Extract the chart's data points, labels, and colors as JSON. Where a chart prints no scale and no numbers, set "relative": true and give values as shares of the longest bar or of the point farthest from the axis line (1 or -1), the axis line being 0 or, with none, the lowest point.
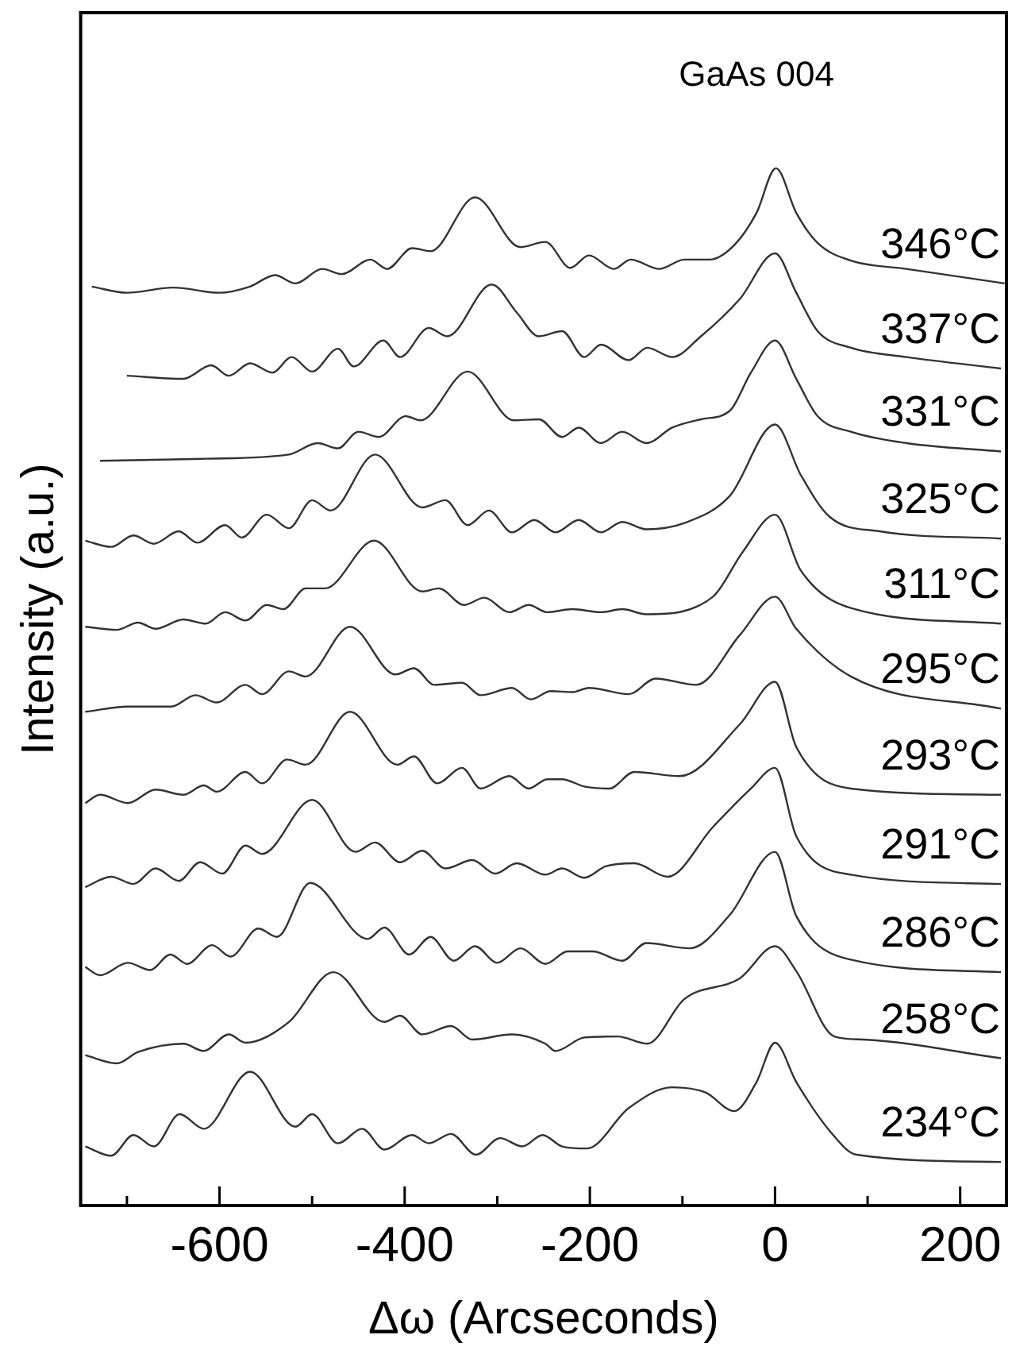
{
  "chart_data": {
    "type": "line",
    "xlabel": "Δω (Arcseconds)",
    "ylabel": "Intensity (a.u.)",
    "relative": true,
    "xlim": [
      -750,
      250
    ],
    "xticks": [
      {
        "value": -700,
        "label": null
      },
      -600,
      {
        "value": -500,
        "label": null
      },
      -400,
      {
        "value": -300,
        "label": null
      },
      -200,
      {
        "value": -100,
        "label": null
      },
      0,
      {
        "value": 100,
        "label": null
      },
      200
    ],
    "grid": false,
    "annotations": [
      "GaAs 004"
    ],
    "series": [
      {
        "name": "346°C",
        "color": "#333333",
        "x": [
          -738,
          -700,
          -650,
          -600,
          -567,
          -540,
          -518,
          -489,
          -468,
          -437,
          -419,
          -392,
          -372,
          -324,
          -275,
          -248,
          -221,
          -201,
          -174,
          -156,
          -125,
          -98,
          -71,
          -44,
          -20,
          1,
          23,
          46,
          82,
          142,
          248
        ],
        "values": [
          0.886,
          0.88,
          0.885,
          0.88,
          0.886,
          0.897,
          0.889,
          0.903,
          0.898,
          0.912,
          0.903,
          0.923,
          0.92,
          0.972,
          0.924,
          0.929,
          0.904,
          0.916,
          0.903,
          0.912,
          0.903,
          0.912,
          0.912,
          0.926,
          0.957,
          1,
          0.957,
          0.928,
          0.911,
          0.903,
          0.889
        ]
      },
      {
        "name": "337°C",
        "color": "#333333",
        "x": [
          -700,
          -639,
          -609,
          -590,
          -567,
          -543,
          -522,
          -500,
          -472,
          -455,
          -423,
          -405,
          -374,
          -354,
          -306,
          -279,
          -255,
          -230,
          -206,
          -188,
          -158,
          -138,
          -111,
          -80,
          -38,
          0,
          23,
          46,
          82,
          142,
          244
        ],
        "values": [
          0.8,
          0.797,
          0.81,
          0.8,
          0.812,
          0.803,
          0.818,
          0.804,
          0.826,
          0.809,
          0.834,
          0.818,
          0.846,
          0.838,
          0.888,
          0.861,
          0.838,
          0.843,
          0.818,
          0.83,
          0.815,
          0.827,
          0.818,
          0.838,
          0.874,
          0.918,
          0.88,
          0.843,
          0.827,
          0.818,
          0.807
        ]
      },
      {
        "name": "331°C",
        "color": "#333333",
        "x": [
          -729,
          -615,
          -525,
          -494,
          -472,
          -450,
          -428,
          -399,
          -383,
          -332,
          -282,
          -255,
          -230,
          -212,
          -188,
          -165,
          -139,
          -111,
          -80,
          -49,
          -26,
          0,
          23,
          46,
          82,
          142,
          244
        ],
        "values": [
          0.718,
          0.72,
          0.724,
          0.735,
          0.73,
          0.746,
          0.741,
          0.761,
          0.757,
          0.804,
          0.757,
          0.758,
          0.741,
          0.75,
          0.735,
          0.746,
          0.735,
          0.75,
          0.758,
          0.766,
          0.803,
          0.834,
          0.797,
          0.761,
          0.746,
          0.735,
          0.727
        ]
      },
      {
        "name": "325°C",
        "color": "#333333",
        "x": [
          -745,
          -717,
          -693,
          -671,
          -644,
          -624,
          -594,
          -576,
          -549,
          -525,
          -500,
          -480,
          -432,
          -381,
          -356,
          -332,
          -309,
          -284,
          -260,
          -237,
          -212,
          -188,
          -165,
          -139,
          -98,
          -49,
          0,
          28,
          59,
          113,
          244
        ],
        "values": [
          0.641,
          0.635,
          0.646,
          0.638,
          0.65,
          0.639,
          0.656,
          0.644,
          0.666,
          0.653,
          0.68,
          0.67,
          0.724,
          0.673,
          0.68,
          0.656,
          0.67,
          0.649,
          0.661,
          0.649,
          0.661,
          0.649,
          0.659,
          0.652,
          0.658,
          0.684,
          0.753,
          0.704,
          0.664,
          0.65,
          0.643
        ]
      },
      {
        "name": "311°C",
        "color": "#333333",
        "x": [
          -745,
          -711,
          -688,
          -669,
          -639,
          -615,
          -594,
          -572,
          -549,
          -531,
          -507,
          -486,
          -433,
          -381,
          -363,
          -336,
          -314,
          -287,
          -266,
          -246,
          -219,
          -188,
          -165,
          -139,
          -67,
          -35,
          0,
          28,
          82,
          244
        ],
        "values": [
          0.558,
          0.555,
          0.562,
          0.556,
          0.565,
          0.561,
          0.572,
          0.564,
          0.579,
          0.575,
          0.595,
          0.595,
          0.641,
          0.592,
          0.595,
          0.579,
          0.586,
          0.572,
          0.579,
          0.572,
          0.575,
          0.572,
          0.575,
          0.57,
          0.587,
          0.63,
          0.666,
          0.612,
          0.576,
          0.561
        ]
      },
      {
        "name": "295°C",
        "color": "#333333",
        "x": [
          -745,
          -699,
          -652,
          -626,
          -603,
          -572,
          -554,
          -525,
          -507,
          -459,
          -410,
          -390,
          -368,
          -338,
          -318,
          -284,
          -264,
          -242,
          -219,
          -201,
          -158,
          -129,
          -85,
          -38,
          0,
          23,
          82,
          244
        ],
        "values": [
          0.476,
          0.481,
          0.481,
          0.492,
          0.485,
          0.502,
          0.493,
          0.515,
          0.51,
          0.558,
          0.512,
          0.518,
          0.502,
          0.504,
          0.492,
          0.499,
          0.488,
          0.496,
          0.495,
          0.499,
          0.493,
          0.508,
          0.502,
          0.55,
          0.587,
          0.556,
          0.51,
          0.479
        ]
      },
      {
        "name": "293°C",
        "color": "#333333",
        "x": [
          -745,
          -729,
          -699,
          -669,
          -639,
          -617,
          -603,
          -572,
          -554,
          -527,
          -507,
          -459,
          -408,
          -390,
          -365,
          -338,
          -318,
          -287,
          -266,
          -246,
          -230,
          -206,
          -179,
          -152,
          -103,
          -38,
          0,
          23,
          82,
          244
        ],
        "values": [
          0.388,
          0.396,
          0.388,
          0.401,
          0.396,
          0.405,
          0.399,
          0.418,
          0.407,
          0.43,
          0.425,
          0.476,
          0.425,
          0.433,
          0.407,
          0.422,
          0.402,
          0.414,
          0.402,
          0.411,
          0.411,
          0.404,
          0.402,
          0.418,
          0.414,
          0.464,
          0.505,
          0.442,
          0.402,
          0.396
        ]
      },
      {
        "name": "291°C",
        "color": "#333333",
        "x": [
          -745,
          -717,
          -693,
          -669,
          -644,
          -621,
          -597,
          -572,
          -554,
          -500,
          -453,
          -432,
          -405,
          -381,
          -356,
          -327,
          -302,
          -279,
          -248,
          -230,
          -206,
          -183,
          -152,
          -116,
          -67,
          -26,
          0,
          23,
          82,
          244
        ],
        "values": [
          0.307,
          0.317,
          0.31,
          0.325,
          0.313,
          0.331,
          0.32,
          0.347,
          0.339,
          0.391,
          0.341,
          0.35,
          0.331,
          0.342,
          0.325,
          0.333,
          0.32,
          0.33,
          0.319,
          0.325,
          0.316,
          0.327,
          0.33,
          0.317,
          0.365,
          0.402,
          0.422,
          0.356,
          0.319,
          0.31
        ]
      },
      {
        "name": "286°C",
        "color": "#333333",
        "x": [
          -745,
          -729,
          -699,
          -675,
          -653,
          -635,
          -608,
          -588,
          -558,
          -538,
          -502,
          -440,
          -422,
          -395,
          -372,
          -347,
          -324,
          -300,
          -275,
          -248,
          -224,
          -197,
          -165,
          -139,
          -92,
          -49,
          0,
          23,
          82,
          244
        ],
        "values": [
          0.23,
          0.222,
          0.234,
          0.227,
          0.242,
          0.233,
          0.251,
          0.24,
          0.267,
          0.259,
          0.311,
          0.257,
          0.268,
          0.242,
          0.259,
          0.236,
          0.25,
          0.234,
          0.248,
          0.233,
          0.245,
          0.245,
          0.236,
          0.253,
          0.248,
          0.28,
          0.341,
          0.279,
          0.237,
          0.225
        ]
      },
      {
        "name": "258°C",
        "color": "#333333",
        "x": [
          -745,
          -711,
          -688,
          -639,
          -617,
          -590,
          -572,
          -525,
          -477,
          -422,
          -405,
          -381,
          -350,
          -327,
          -284,
          -248,
          -237,
          -206,
          -170,
          -138,
          -98,
          -38,
          0,
          23,
          64,
          95,
          244
        ],
        "values": [
          0.145,
          0.137,
          0.148,
          0.156,
          0.149,
          0.165,
          0.157,
          0.177,
          0.225,
          0.177,
          0.183,
          0.165,
          0.173,
          0.16,
          0.165,
          0.156,
          0.149,
          0.162,
          0.163,
          0.156,
          0.199,
          0.219,
          0.25,
          0.226,
          0.163,
          0.16,
          0.142
        ]
      },
      {
        "name": "234°C",
        "color": "#333333",
        "x": [
          -745,
          -717,
          -693,
          -671,
          -643,
          -617,
          -567,
          -518,
          -500,
          -472,
          -446,
          -422,
          -392,
          -374,
          -350,
          -323,
          -297,
          -273,
          -251,
          -230,
          -203,
          -158,
          -111,
          -75,
          -44,
          -20,
          0,
          23,
          59,
          88,
          244
        ],
        "values": [
          0.057,
          0.048,
          0.068,
          0.057,
          0.088,
          0.074,
          0.129,
          0.076,
          0.088,
          0.06,
          0.074,
          0.054,
          0.068,
          0.06,
          0.069,
          0.049,
          0.065,
          0.057,
          0.068,
          0.057,
          0.055,
          0.094,
          0.114,
          0.109,
          0.091,
          0.119,
          0.157,
          0.119,
          0.072,
          0.049,
          0.042
        ]
      }
    ]
  }
}
